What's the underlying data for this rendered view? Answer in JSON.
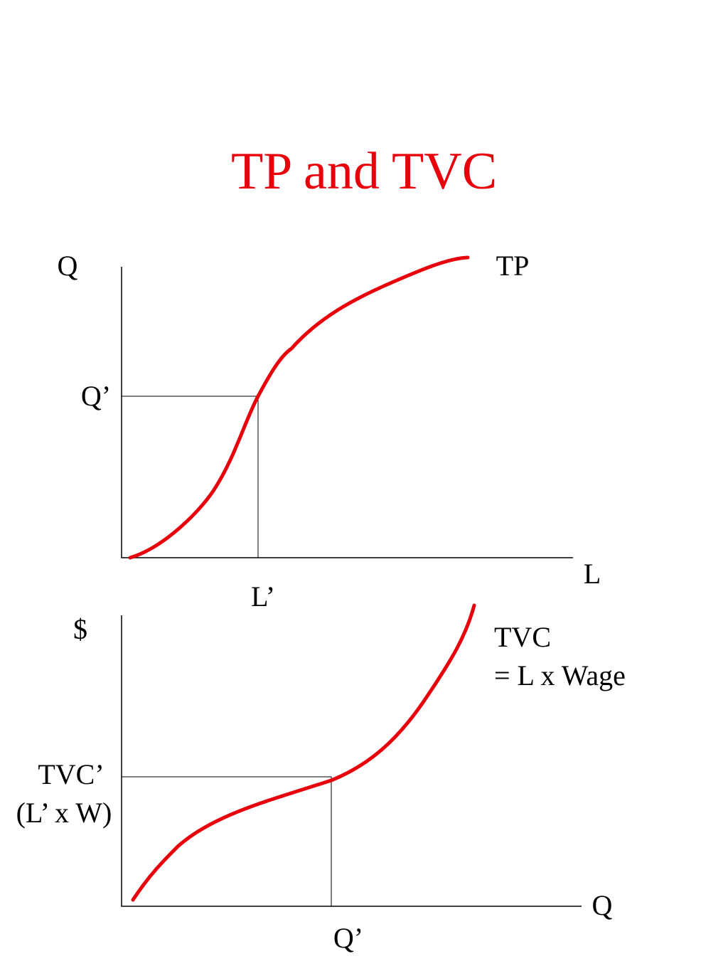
{
  "title": "TP and TVC",
  "top_graph": {
    "y_axis_label": "Q",
    "x_axis_label": "L",
    "curve_label": "TP",
    "y_marker": "Q’",
    "x_marker": "L’"
  },
  "bottom_graph": {
    "y_axis_label": "$",
    "x_axis_label": "Q",
    "curve_label": [
      "TVC",
      "= L x Wage"
    ],
    "y_marker": [
      "TVC’",
      "(L’ x W)"
    ],
    "x_marker": "Q’"
  }
}
